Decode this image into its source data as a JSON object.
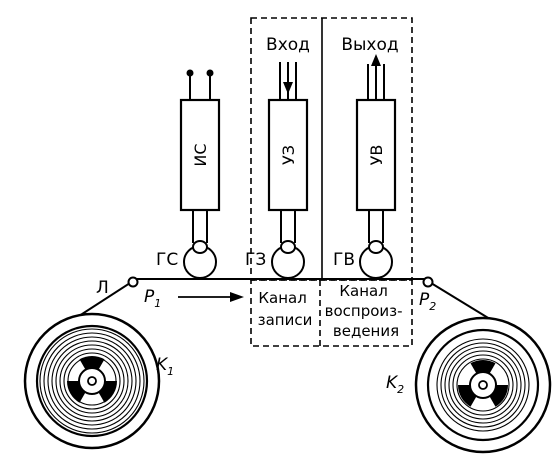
{
  "blocks": {
    "erase_amp": "ИС",
    "record_amp": "УЗ",
    "play_amp": "УВ"
  },
  "heads": {
    "erase": "ГС",
    "record": "ГЗ",
    "play": "ГВ"
  },
  "io": {
    "input": "Вход",
    "output": "Выход"
  },
  "channels": {
    "record": [
      "Канал",
      "записи"
    ],
    "play": [
      "Канал",
      "воспроиз-",
      "ведения"
    ]
  },
  "tape_label": "Л",
  "rollers": {
    "left": {
      "letter": "P",
      "index": "1"
    },
    "right": {
      "letter": "P",
      "index": "2"
    }
  },
  "reels": {
    "left": {
      "letter": "K",
      "index": "1"
    },
    "right": {
      "letter": "K",
      "index": "2"
    }
  }
}
